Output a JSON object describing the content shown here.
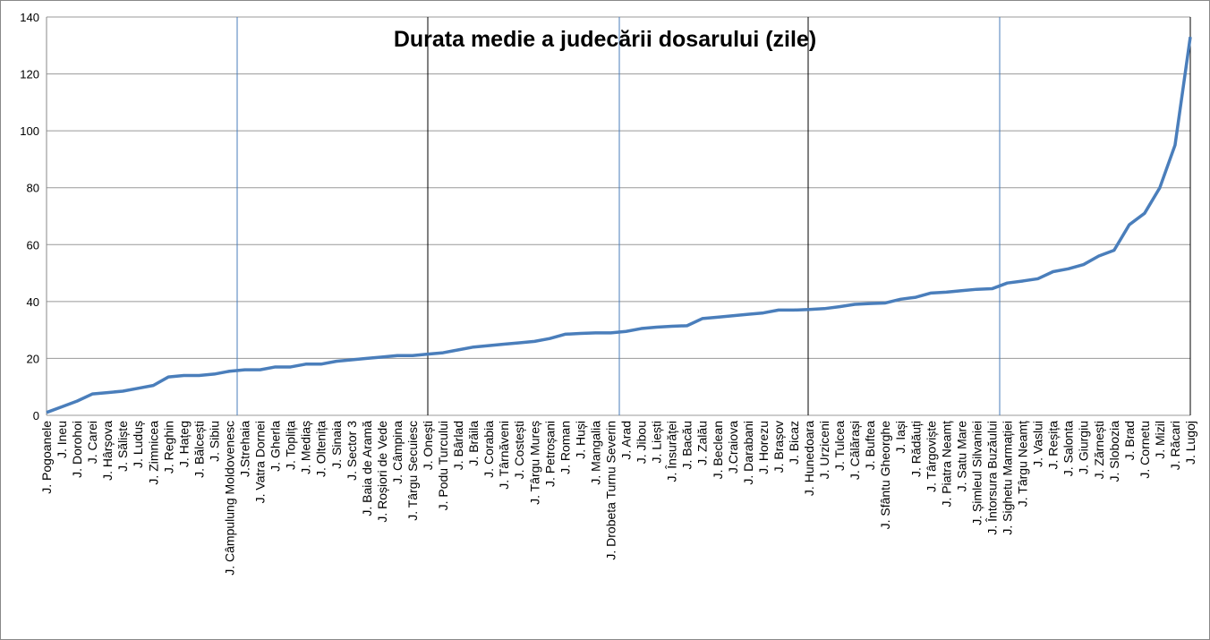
{
  "chart_data": {
    "type": "line",
    "title": "Durata medie a judecării dosarului (zile)",
    "categories": [
      "J. Pogoanele",
      "J. Ineu",
      "J. Dorohoi",
      "J. Carei",
      "J. Hârșova",
      "J. Săliște",
      "J. Luduș",
      "J. Zimnicea",
      "J. Reghin",
      "J. Hațeg",
      "J. Bălcești",
      "J. Sibiu",
      "J. Câmpulung Moldovenesc",
      "J.Strehaia",
      "J. Vatra Dornei",
      "J. Gherla",
      "J. Toplița",
      "J. Mediaș",
      "J. Oltenița",
      "J. Sinaia",
      "J. Sector 3",
      "J. Baia de Aramă",
      "J. Roșiori de Vede",
      "J. Câmpina",
      "J. Târgu Secuiesc",
      "J. Onești",
      "J. Podu Turcului",
      "J. Bârlad",
      "J. Brăila",
      "J. Corabia",
      "J. Târnăveni",
      "J. Costești",
      "J. Târgu Mureș",
      "J. Petroșani",
      "J. Roman",
      "J. Huși",
      "J. Mangalia",
      "J. Drobeta Turnu Severin",
      "J. Arad",
      "J. Jibou",
      "J. Liești",
      "J. Însurăței",
      "J. Bacău",
      "J. Zalău",
      "J. Beclean",
      "J.Craiova",
      "J. Darabani",
      "J. Horezu",
      "J. Brașov",
      "J. Bicaz",
      "J. Hunedoara",
      "J. Urziceni",
      "J. Tulcea",
      "J. Călărași",
      "J. Buftea",
      "J. Sfântu Gheorghe",
      "J. Iași",
      "J. Rădăuți",
      "J. Târgoviște",
      "J. Piatra Neamț",
      "J. Satu Mare",
      "J. Șimleul Silvaniei",
      "J. Întorsura Buzăului",
      "J. Sighetu Marmației",
      "J. Târgu Neamț",
      "J. Vaslui",
      "J. Reșița",
      "J. Salonta",
      "J. Giurgiu",
      "J. Zărnești",
      "J. Slobozia",
      "J. Brad",
      "J. Cornetu",
      "J. Mizil",
      "J. Răcari",
      "J. Lugoj"
    ],
    "series": [
      {
        "name": "Durata medie",
        "color": "#4a7ebb",
        "values": [
          1,
          3,
          5,
          7.5,
          8,
          8.5,
          9.5,
          10.5,
          13.5,
          14,
          14,
          14.5,
          15.5,
          16,
          16,
          17,
          17,
          18,
          18,
          19,
          19.5,
          20,
          20.5,
          21,
          21,
          21.5,
          22,
          23,
          24,
          24.5,
          25,
          25.5,
          26,
          27,
          28.5,
          28.8,
          29,
          29,
          29.5,
          30.5,
          31,
          31.3,
          31.5,
          34,
          34.5,
          35,
          35.5,
          36,
          37,
          37,
          37.2,
          37.5,
          38.2,
          39,
          39.3,
          39.5,
          40.8,
          41.5,
          43,
          43.3,
          43.8,
          44.3,
          44.5,
          46.5,
          47.2,
          48,
          50.5,
          51.5,
          53,
          56,
          58,
          67,
          71,
          80,
          95,
          133
        ]
      }
    ],
    "ylim": [
      0,
      140
    ],
    "yticks": [
      0,
      20,
      40,
      60,
      80,
      100,
      120,
      140
    ],
    "grid": true
  }
}
